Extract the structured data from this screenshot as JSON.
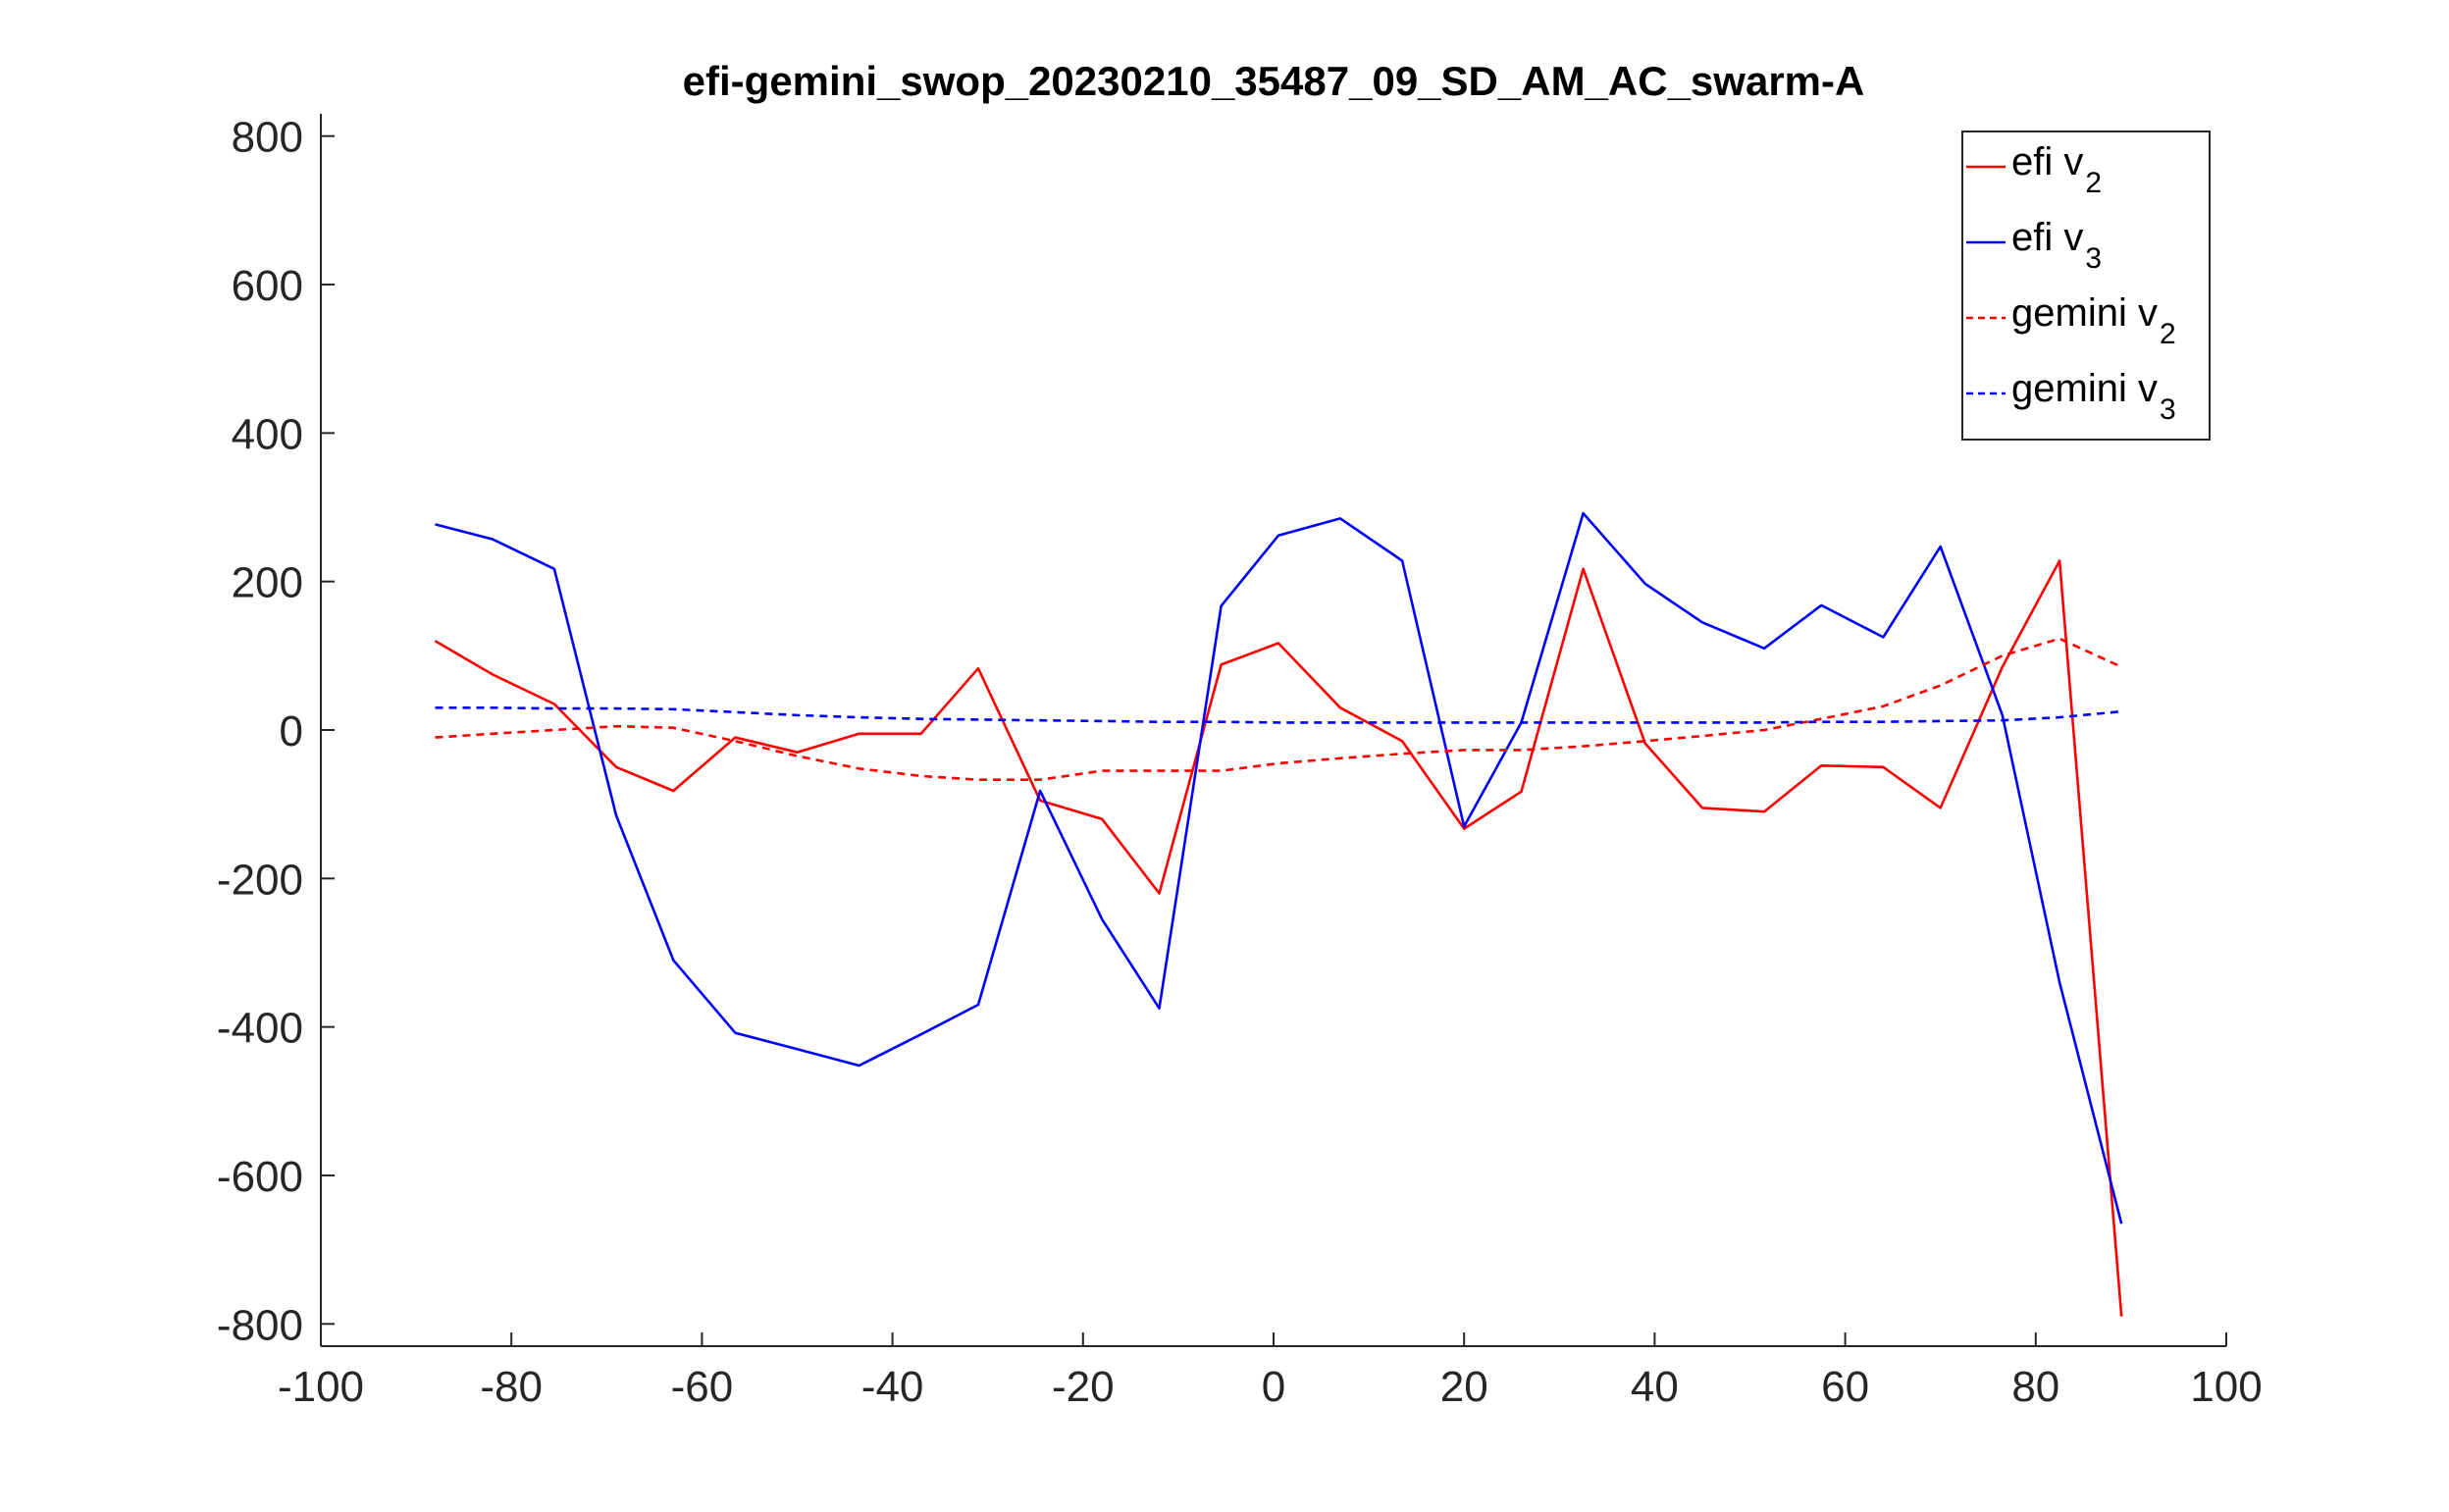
{
  "chart_data": {
    "type": "line",
    "title": "efi-gemini_swop_20230210_35487_09_SD_AM_AC_swarm-A",
    "xlabel": "",
    "ylabel": "",
    "xlim": [
      -100,
      100
    ],
    "ylim": [
      -830,
      830
    ],
    "xticks": [
      -100,
      -80,
      -60,
      -40,
      -20,
      0,
      20,
      40,
      60,
      80,
      100
    ],
    "yticks": [
      -800,
      -600,
      -400,
      -200,
      0,
      200,
      400,
      600,
      800
    ],
    "xtick_labels": [
      "-100",
      "-80",
      "-60",
      "-40",
      "-20",
      "0",
      "20",
      "40",
      "60",
      "80",
      "100"
    ],
    "ytick_labels": [
      "-800",
      "-600",
      "-400",
      "-200",
      "0",
      "200",
      "400",
      "600",
      "800"
    ],
    "grid": false,
    "legend_position": "top-right",
    "x": [
      -88,
      -82,
      -75.5,
      -69,
      -63,
      -56.5,
      -50,
      -43.5,
      -37,
      -31,
      -24.5,
      -18,
      -12,
      -5.5,
      0.5,
      7,
      13.5,
      20,
      26,
      32.5,
      39,
      45,
      51.5,
      57.5,
      64,
      70,
      76.5,
      82.5,
      89
    ],
    "series": [
      {
        "name": "efi v",
        "subscript": "2",
        "color": "#ff0000",
        "dash": "solid",
        "values": [
          120,
          75,
          35,
          -50,
          -82,
          -10,
          -30,
          -5,
          -5,
          83,
          -95,
          -120,
          -220,
          88,
          117,
          30,
          -15,
          -133,
          -83,
          217,
          -18,
          -105,
          -110,
          -48,
          -50,
          -105,
          85,
          228,
          -790
        ]
      },
      {
        "name": "efi v",
        "subscript": "3",
        "color": "#0000ff",
        "dash": "solid",
        "values": [
          277,
          257,
          217,
          -115,
          -310,
          -408,
          -430,
          -452,
          -410,
          -370,
          -82,
          -255,
          -375,
          167,
          262,
          285,
          228,
          -130,
          10,
          292,
          197,
          145,
          110,
          168,
          125,
          247,
          20,
          -340,
          -665
        ]
      },
      {
        "name": "gemini v",
        "subscript": "2",
        "color": "#ff0000",
        "dash": "dashed",
        "values": [
          -10,
          -5,
          0,
          5,
          3,
          -15,
          -35,
          -52,
          -62,
          -67,
          -67,
          -55,
          -55,
          -55,
          -45,
          -38,
          -32,
          -27,
          -27,
          -22,
          -15,
          -8,
          0,
          15,
          32,
          60,
          100,
          123,
          85
        ]
      },
      {
        "name": "gemini v",
        "subscript": "3",
        "color": "#0000ff",
        "dash": "dashed",
        "values": [
          30,
          30,
          29,
          29,
          28,
          24,
          20,
          17,
          15,
          14,
          13,
          12,
          11,
          11,
          10,
          10,
          10,
          10,
          10,
          10,
          10,
          10,
          10,
          11,
          11,
          12,
          13,
          17,
          25
        ]
      }
    ]
  }
}
